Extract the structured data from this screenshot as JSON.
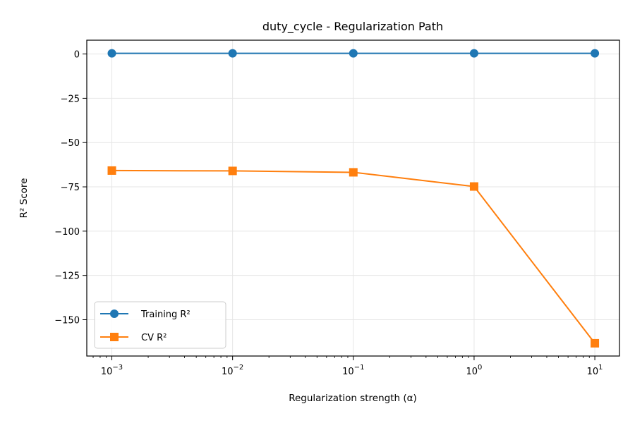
{
  "chart_data": {
    "type": "line",
    "title": "duty_cycle - Regularization Path",
    "xlabel": "Regularization strength (α)",
    "ylabel": "R² Score",
    "xscale": "log",
    "x": [
      0.001,
      0.01,
      0.1,
      1,
      10
    ],
    "xlim": [
      0.00062,
      16
    ],
    "ylim": [
      -170.5,
      7.8
    ],
    "x_tick_labels": [
      {
        "value": 0.001,
        "base": "10",
        "exp": "−3"
      },
      {
        "value": 0.01,
        "base": "10",
        "exp": "−2"
      },
      {
        "value": 0.1,
        "base": "10",
        "exp": "−1"
      },
      {
        "value": 1,
        "base": "10",
        "exp": "0"
      },
      {
        "value": 10,
        "base": "10",
        "exp": "1"
      }
    ],
    "y_ticks": [
      0,
      -25,
      -50,
      -75,
      -100,
      -125,
      -150
    ],
    "y_tick_labels": [
      "0",
      "−25",
      "−50",
      "−75",
      "−100",
      "−125",
      "−150"
    ],
    "grid": true,
    "legend_position": "lower-left",
    "series": [
      {
        "name": "Training R²",
        "color": "#1f77b4",
        "marker": "circle",
        "values": [
          0.4,
          0.4,
          0.4,
          0.4,
          0.4
        ]
      },
      {
        "name": "CV R²",
        "color": "#ff7f0e",
        "marker": "square",
        "values": [
          -65.8,
          -66.0,
          -66.8,
          -74.8,
          -163.3
        ]
      }
    ]
  }
}
